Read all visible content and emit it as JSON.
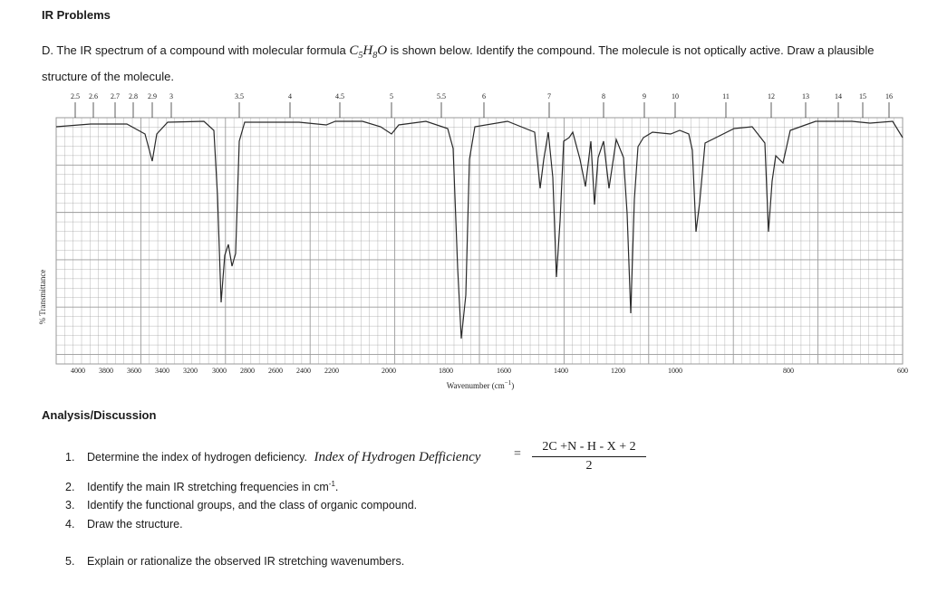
{
  "title": "IR Problems",
  "question": {
    "lead": "D. The IR spectrum of a compound with molecular formula",
    "formula": {
      "c": "C",
      "c_sub": "5",
      "h": "H",
      "h_sub": "8",
      "o": "O"
    },
    "tail": "is shown below. Identify the compound. The molecule is not optically active. Draw a plausible structure of the molecule."
  },
  "spectrum": {
    "y_label": "% Transmittance",
    "x_label": "Wavenumber (cm",
    "x_label_sup": "−1",
    "x_label_end": ")",
    "top_ticks": [
      "2.5",
      "2.6",
      "2.7",
      "2.8",
      "2.9",
      "3",
      "3.5",
      "4",
      "4.5",
      "5",
      "5.5",
      "6",
      "7",
      "8",
      "9",
      "10",
      "11",
      "12",
      "13",
      "14",
      "15",
      "16"
    ],
    "bottom_ticks": [
      "4000",
      "3800",
      "3600",
      "3400",
      "3200",
      "3000",
      "2800",
      "2600",
      "2400",
      "2200",
      "2000",
      "1800",
      "1600",
      "1400",
      "1200",
      "1000",
      "800",
      "600"
    ],
    "line_color": "#2a2a2a",
    "grid_color": "#9a9a9a"
  },
  "analysis": {
    "heading": "Analysis/Discussion",
    "items": [
      {
        "num": "1.",
        "text": "Determine the index of hydrogen deficiency.",
        "formula_label": "Index of Hydrogen Defficiency"
      },
      {
        "num": "2.",
        "text": "Identify the main IR stretching frequencies in cm",
        "sup": "-1",
        "end": "."
      },
      {
        "num": "3.",
        "text": "Identify the functional groups, and the class of organic compound."
      },
      {
        "num": "4.",
        "text": "Draw the structure."
      },
      {
        "num": "5.",
        "text": "Explain or rationalize the observed IR stretching wavenumbers."
      }
    ],
    "ihd_formula": {
      "eq": "=",
      "numerator": "2C +N - H - X + 2",
      "denominator": "2"
    }
  }
}
